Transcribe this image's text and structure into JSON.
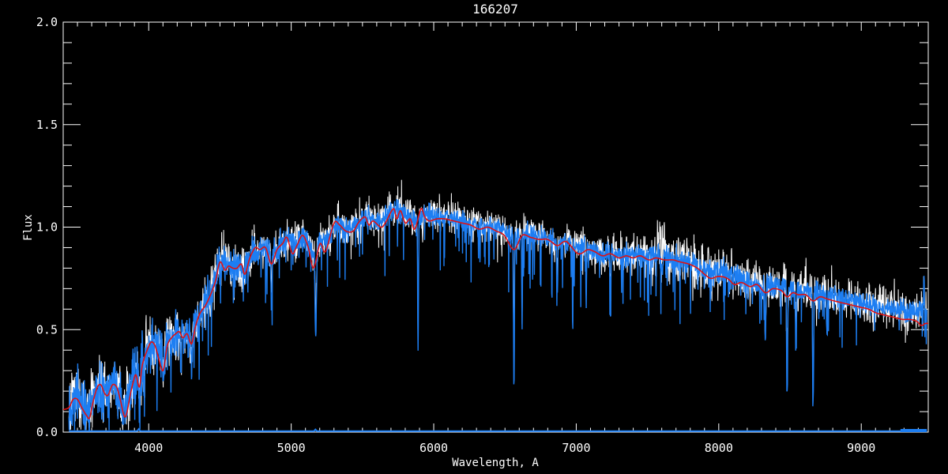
{
  "window": {
    "background": "#000000"
  },
  "chart_data": {
    "type": "line",
    "title": "166207",
    "xlabel": "Wavelength, A",
    "ylabel": "Flux",
    "xlim": [
      3400,
      9470
    ],
    "ylim": [
      0.0,
      2.0
    ],
    "x_major_ticks": [
      4000,
      5000,
      6000,
      7000,
      8000,
      9000
    ],
    "x_minor_step": 100,
    "y_major_ticks": [
      0.0,
      0.5,
      1.0,
      1.5,
      2.0
    ],
    "y_minor_step": 0.1,
    "grid": false,
    "legend": "none",
    "background": "#000000",
    "axis_color": "#ffffff",
    "data_range": [
      3440,
      9460
    ],
    "series": [
      {
        "name": "observed spectrum",
        "role": "observed",
        "color": "#ffffff"
      },
      {
        "name": "fitted spectrum",
        "role": "fit",
        "color": "#1d7ef2"
      },
      {
        "name": "model",
        "role": "model",
        "color": "#e01212"
      },
      {
        "name": "error spectrum",
        "role": "error",
        "color": "#1d7ef2"
      }
    ],
    "continuum": [
      [
        3440,
        0.13
      ],
      [
        3500,
        0.17
      ],
      [
        3560,
        0.1
      ],
      [
        3610,
        0.17
      ],
      [
        3660,
        0.24
      ],
      [
        3710,
        0.2
      ],
      [
        3750,
        0.24
      ],
      [
        3800,
        0.18
      ],
      [
        3830,
        0.11
      ],
      [
        3870,
        0.2
      ],
      [
        3910,
        0.3
      ],
      [
        3960,
        0.35
      ],
      [
        4000,
        0.42
      ],
      [
        4050,
        0.44
      ],
      [
        4100,
        0.37
      ],
      [
        4150,
        0.47
      ],
      [
        4200,
        0.5
      ],
      [
        4250,
        0.48
      ],
      [
        4300,
        0.46
      ],
      [
        4360,
        0.58
      ],
      [
        4430,
        0.67
      ],
      [
        4500,
        0.83
      ],
      [
        4560,
        0.82
      ],
      [
        4620,
        0.81
      ],
      [
        4680,
        0.8
      ],
      [
        4750,
        0.9
      ],
      [
        4820,
        0.9
      ],
      [
        4861,
        0.86
      ],
      [
        4910,
        0.9
      ],
      [
        4970,
        0.95
      ],
      [
        5030,
        0.92
      ],
      [
        5080,
        0.96
      ],
      [
        5140,
        0.89
      ],
      [
        5200,
        0.93
      ],
      [
        5260,
        0.95
      ],
      [
        5320,
        1.01
      ],
      [
        5390,
        1.0
      ],
      [
        5450,
        1.01
      ],
      [
        5520,
        1.05
      ],
      [
        5580,
        1.03
      ],
      [
        5640,
        1.03
      ],
      [
        5700,
        1.08
      ],
      [
        5760,
        1.08
      ],
      [
        5820,
        1.06
      ],
      [
        5880,
        1.03
      ],
      [
        5940,
        1.06
      ],
      [
        6000,
        1.05
      ],
      [
        6100,
        1.05
      ],
      [
        6200,
        1.03
      ],
      [
        6300,
        1.01
      ],
      [
        6400,
        1.0
      ],
      [
        6500,
        0.98
      ],
      [
        6563,
        0.95
      ],
      [
        6650,
        0.97
      ],
      [
        6750,
        0.95
      ],
      [
        6850,
        0.93
      ],
      [
        6950,
        0.92
      ],
      [
        7050,
        0.9
      ],
      [
        7150,
        0.88
      ],
      [
        7250,
        0.87
      ],
      [
        7350,
        0.87
      ],
      [
        7450,
        0.87
      ],
      [
        7550,
        0.86
      ],
      [
        7650,
        0.85
      ],
      [
        7750,
        0.84
      ],
      [
        7850,
        0.81
      ],
      [
        7950,
        0.78
      ],
      [
        8050,
        0.77
      ],
      [
        8150,
        0.75
      ],
      [
        8250,
        0.73
      ],
      [
        8350,
        0.72
      ],
      [
        8450,
        0.71
      ],
      [
        8550,
        0.7
      ],
      [
        8650,
        0.69
      ],
      [
        8750,
        0.67
      ],
      [
        8850,
        0.66
      ],
      [
        8950,
        0.64
      ],
      [
        9050,
        0.62
      ],
      [
        9150,
        0.61
      ],
      [
        9250,
        0.6
      ],
      [
        9350,
        0.59
      ],
      [
        9470,
        0.58
      ]
    ],
    "model": [
      [
        3400,
        0.11
      ],
      [
        3440,
        0.12
      ],
      [
        3470,
        0.16
      ],
      [
        3500,
        0.16
      ],
      [
        3530,
        0.12
      ],
      [
        3565,
        0.08
      ],
      [
        3585,
        0.07
      ],
      [
        3610,
        0.15
      ],
      [
        3640,
        0.22
      ],
      [
        3665,
        0.23
      ],
      [
        3690,
        0.19
      ],
      [
        3715,
        0.18
      ],
      [
        3745,
        0.23
      ],
      [
        3775,
        0.22
      ],
      [
        3800,
        0.16
      ],
      [
        3827,
        0.08
      ],
      [
        3845,
        0.09
      ],
      [
        3870,
        0.18
      ],
      [
        3890,
        0.24
      ],
      [
        3910,
        0.28
      ],
      [
        3935,
        0.22
      ],
      [
        3956,
        0.33
      ],
      [
        3995,
        0.41
      ],
      [
        4020,
        0.44
      ],
      [
        4045,
        0.42
      ],
      [
        4070,
        0.36
      ],
      [
        4101,
        0.3
      ],
      [
        4130,
        0.42
      ],
      [
        4160,
        0.46
      ],
      [
        4190,
        0.48
      ],
      [
        4215,
        0.49
      ],
      [
        4240,
        0.46
      ],
      [
        4270,
        0.48
      ],
      [
        4300,
        0.43
      ],
      [
        4330,
        0.52
      ],
      [
        4360,
        0.58
      ],
      [
        4400,
        0.62
      ],
      [
        4440,
        0.68
      ],
      [
        4470,
        0.74
      ],
      [
        4500,
        0.83
      ],
      [
        4535,
        0.79
      ],
      [
        4560,
        0.81
      ],
      [
        4590,
        0.8
      ],
      [
        4620,
        0.8
      ],
      [
        4650,
        0.82
      ],
      [
        4675,
        0.77
      ],
      [
        4710,
        0.85
      ],
      [
        4748,
        0.9
      ],
      [
        4780,
        0.89
      ],
      [
        4820,
        0.9
      ],
      [
        4861,
        0.82
      ],
      [
        4900,
        0.89
      ],
      [
        4940,
        0.92
      ],
      [
        4970,
        0.95
      ],
      [
        5008,
        0.87
      ],
      [
        5040,
        0.91
      ],
      [
        5080,
        0.96
      ],
      [
        5120,
        0.9
      ],
      [
        5157,
        0.8
      ],
      [
        5202,
        0.92
      ],
      [
        5240,
        0.88
      ],
      [
        5300,
        1.02
      ],
      [
        5340,
        1.01
      ],
      [
        5385,
        0.98
      ],
      [
        5435,
        0.98
      ],
      [
        5470,
        1.02
      ],
      [
        5517,
        1.05
      ],
      [
        5545,
        1.01
      ],
      [
        5575,
        1.03
      ],
      [
        5628,
        1.0
      ],
      [
        5660,
        1.02
      ],
      [
        5717,
        1.09
      ],
      [
        5740,
        1.04
      ],
      [
        5767,
        1.08
      ],
      [
        5800,
        1.02
      ],
      [
        5835,
        1.04
      ],
      [
        5867,
        0.99
      ],
      [
        5911,
        1.09
      ],
      [
        5937,
        1.05
      ],
      [
        5970,
        1.03
      ],
      [
        6020,
        1.04
      ],
      [
        6080,
        1.04
      ],
      [
        6140,
        1.03
      ],
      [
        6200,
        1.02
      ],
      [
        6260,
        1.01
      ],
      [
        6320,
        0.99
      ],
      [
        6380,
        1.0
      ],
      [
        6440,
        0.98
      ],
      [
        6495,
        0.96
      ],
      [
        6563,
        0.89
      ],
      [
        6620,
        0.96
      ],
      [
        6680,
        0.95
      ],
      [
        6740,
        0.94
      ],
      [
        6800,
        0.94
      ],
      [
        6867,
        0.91
      ],
      [
        6930,
        0.93
      ],
      [
        7013,
        0.87
      ],
      [
        7080,
        0.89
      ],
      [
        7130,
        0.88
      ],
      [
        7185,
        0.86
      ],
      [
        7240,
        0.87
      ],
      [
        7300,
        0.85
      ],
      [
        7350,
        0.86
      ],
      [
        7400,
        0.85
      ],
      [
        7450,
        0.86
      ],
      [
        7510,
        0.84
      ],
      [
        7560,
        0.85
      ],
      [
        7620,
        0.84
      ],
      [
        7680,
        0.84
      ],
      [
        7730,
        0.83
      ],
      [
        7790,
        0.82
      ],
      [
        7850,
        0.8
      ],
      [
        7900,
        0.77
      ],
      [
        7944,
        0.75
      ],
      [
        8000,
        0.76
      ],
      [
        8060,
        0.75
      ],
      [
        8110,
        0.72
      ],
      [
        8160,
        0.73
      ],
      [
        8220,
        0.71
      ],
      [
        8270,
        0.72
      ],
      [
        8327,
        0.68
      ],
      [
        8380,
        0.7
      ],
      [
        8440,
        0.69
      ],
      [
        8480,
        0.66
      ],
      [
        8520,
        0.68
      ],
      [
        8560,
        0.67
      ],
      [
        8610,
        0.67
      ],
      [
        8662,
        0.64
      ],
      [
        8710,
        0.66
      ],
      [
        8760,
        0.65
      ],
      [
        8810,
        0.64
      ],
      [
        8870,
        0.63
      ],
      [
        8930,
        0.62
      ],
      [
        8990,
        0.61
      ],
      [
        9050,
        0.6
      ],
      [
        9110,
        0.58
      ],
      [
        9170,
        0.57
      ],
      [
        9230,
        0.56
      ],
      [
        9290,
        0.55
      ],
      [
        9340,
        0.55
      ],
      [
        9390,
        0.54
      ],
      [
        9420,
        0.52
      ],
      [
        9450,
        0.53
      ],
      [
        9470,
        0.53
      ]
    ],
    "absorption_lines": [
      {
        "center": 3935,
        "depth": 0.18,
        "width": 7
      },
      {
        "center": 3968,
        "depth": 0.16,
        "width": 7
      },
      {
        "center": 4101,
        "depth": 0.12,
        "width": 5
      },
      {
        "center": 4227,
        "depth": 0.2,
        "width": 4
      },
      {
        "center": 4300,
        "depth": 0.15,
        "width": 6
      },
      {
        "center": 4861,
        "depth": 0.25,
        "width": 5
      },
      {
        "center": 5172,
        "depth": 0.45,
        "width": 7
      },
      {
        "center": 5890,
        "depth": 0.62,
        "width": 4
      },
      {
        "center": 6563,
        "depth": 0.76,
        "width": 4
      },
      {
        "center": 6620,
        "depth": 0.48,
        "width": 3
      },
      {
        "center": 6867,
        "depth": 0.2,
        "width": 5
      },
      {
        "center": 6975,
        "depth": 0.42,
        "width": 3
      },
      {
        "center": 7070,
        "depth": 0.3,
        "width": 3
      },
      {
        "center": 7241,
        "depth": 0.33,
        "width": 3
      },
      {
        "center": 7600,
        "depth": 0.1,
        "width": 6
      },
      {
        "center": 8327,
        "depth": 0.32,
        "width": 4
      },
      {
        "center": 8480,
        "depth": 0.55,
        "width": 5
      },
      {
        "center": 8542,
        "depth": 0.3,
        "width": 5
      },
      {
        "center": 8662,
        "depth": 0.55,
        "width": 5
      },
      {
        "center": 8760,
        "depth": 0.22,
        "width": 4
      },
      {
        "center": 9440,
        "depth": -0.2,
        "width": 4
      }
    ],
    "white_bumps": [
      {
        "center": 7600,
        "height": 0.12,
        "width": 20
      }
    ],
    "noise": {
      "step": 2,
      "seed_observed": 7,
      "seed_fit": 13,
      "amp_observed": [
        [
          3440,
          0.085
        ],
        [
          3700,
          0.09
        ],
        [
          3950,
          0.09
        ],
        [
          4100,
          0.075
        ],
        [
          4400,
          0.075
        ],
        [
          4700,
          0.06
        ],
        [
          5000,
          0.055
        ],
        [
          5400,
          0.05
        ],
        [
          5800,
          0.05
        ],
        [
          6300,
          0.045
        ],
        [
          6800,
          0.045
        ],
        [
          7200,
          0.05
        ],
        [
          7450,
          0.06
        ],
        [
          7600,
          0.085
        ],
        [
          7800,
          0.075
        ],
        [
          8100,
          0.065
        ],
        [
          8400,
          0.06
        ],
        [
          8700,
          0.055
        ],
        [
          9000,
          0.055
        ],
        [
          9250,
          0.055
        ],
        [
          9470,
          0.06
        ]
      ],
      "amp_fit": [
        [
          3440,
          0.075
        ],
        [
          3700,
          0.08
        ],
        [
          3950,
          0.08
        ],
        [
          4100,
          0.065
        ],
        [
          4400,
          0.06
        ],
        [
          4700,
          0.045
        ],
        [
          5000,
          0.04
        ],
        [
          5400,
          0.035
        ],
        [
          5800,
          0.035
        ],
        [
          6300,
          0.03
        ],
        [
          6800,
          0.03
        ],
        [
          7200,
          0.032
        ],
        [
          7600,
          0.035
        ],
        [
          8000,
          0.04
        ],
        [
          8400,
          0.035
        ],
        [
          8700,
          0.03
        ],
        [
          9000,
          0.03
        ],
        [
          9250,
          0.03
        ],
        [
          9470,
          0.035
        ]
      ],
      "spike_prob_fit": 0.12,
      "spike_max_fit": [
        [
          3440,
          0.22
        ],
        [
          4000,
          0.3
        ],
        [
          4500,
          0.35
        ],
        [
          5000,
          0.3
        ],
        [
          5500,
          0.28
        ],
        [
          6000,
          0.25
        ],
        [
          6500,
          0.3
        ],
        [
          7000,
          0.32
        ],
        [
          7500,
          0.3
        ],
        [
          8000,
          0.28
        ],
        [
          8500,
          0.3
        ],
        [
          9000,
          0.2
        ],
        [
          9470,
          0.18
        ]
      ],
      "spike_prob_obs_up": 0.14,
      "spike_max_obs_up": 0.09,
      "spike_prob_obs_down": 0.08,
      "spike_max_obs_down": 0.12
    },
    "error_spectrum": {
      "level": 0.005,
      "blips": [
        {
          "center": 3930,
          "height": 0.01,
          "width": 6
        },
        {
          "center": 5170,
          "height": 0.008,
          "width": 5
        }
      ],
      "thick_end": {
        "from": 9275,
        "level": 0.012
      }
    }
  }
}
